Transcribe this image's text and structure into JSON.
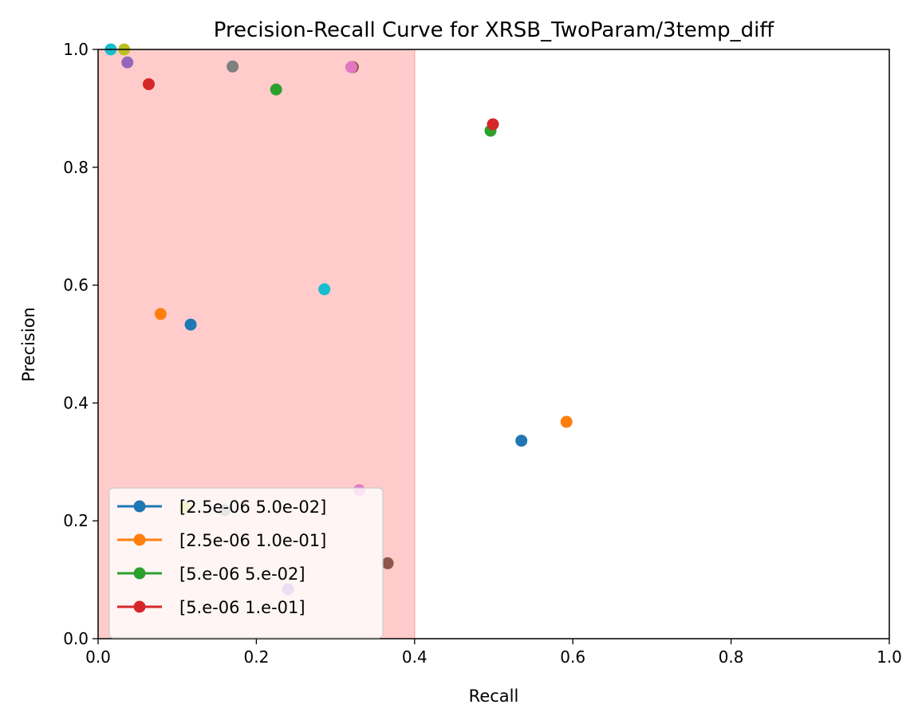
{
  "chart_data": {
    "type": "scatter",
    "title": "Precision-Recall Curve for XRSB_TwoParam/3temp_diff",
    "xlabel": "Recall",
    "ylabel": "Precision",
    "xlim": [
      0.0,
      1.0
    ],
    "ylim": [
      0.0,
      1.0
    ],
    "xticks": [
      "0.0",
      "0.2",
      "0.4",
      "0.6",
      "0.8",
      "1.0"
    ],
    "yticks": [
      "0.0",
      "0.2",
      "0.4",
      "0.6",
      "0.8",
      "1.0"
    ],
    "grid": false,
    "legend_position": "lower-left",
    "shaded_region": {
      "x_range": [
        0.0,
        0.4
      ],
      "color": "#ffcccb"
    },
    "series": [
      {
        "name": "[2.5e-06 5.0e-02]",
        "color": "#1f77b4",
        "x": [
          0.117,
          0.535
        ],
        "y": [
          0.533,
          0.336
        ]
      },
      {
        "name": "[2.5e-06 1.0e-01]",
        "color": "#ff7f0e",
        "x": [
          0.079,
          0.592
        ],
        "y": [
          0.551,
          0.368
        ]
      },
      {
        "name": "[5.e-06 5.e-02]",
        "color": "#2ca02c",
        "x": [
          0.225,
          0.496
        ],
        "y": [
          0.932,
          0.862
        ]
      },
      {
        "name": "[5.e-06 1.e-01]",
        "color": "#d62728",
        "x": [
          0.064,
          0.499
        ],
        "y": [
          0.941,
          0.873
        ]
      },
      {
        "color": "#9467bd",
        "x": [
          0.037,
          0.24
        ],
        "y": [
          0.978,
          0.084
        ]
      },
      {
        "color": "#8c564b",
        "x": [
          0.322,
          0.366
        ],
        "y": [
          0.97,
          0.128
        ]
      },
      {
        "color": "#e377c2",
        "x": [
          0.32,
          0.33
        ],
        "y": [
          0.97,
          0.252
        ]
      },
      {
        "color": "#7f7f7f",
        "x": [
          0.17,
          0.16
        ],
        "y": [
          0.971,
          0.218
        ]
      },
      {
        "color": "#bcbd22",
        "x": [
          0.033,
          0.11
        ],
        "y": [
          1.0,
          0.222
        ]
      },
      {
        "color": "#17becf",
        "x": [
          0.016,
          0.286
        ],
        "y": [
          1.0,
          0.593
        ]
      }
    ]
  }
}
